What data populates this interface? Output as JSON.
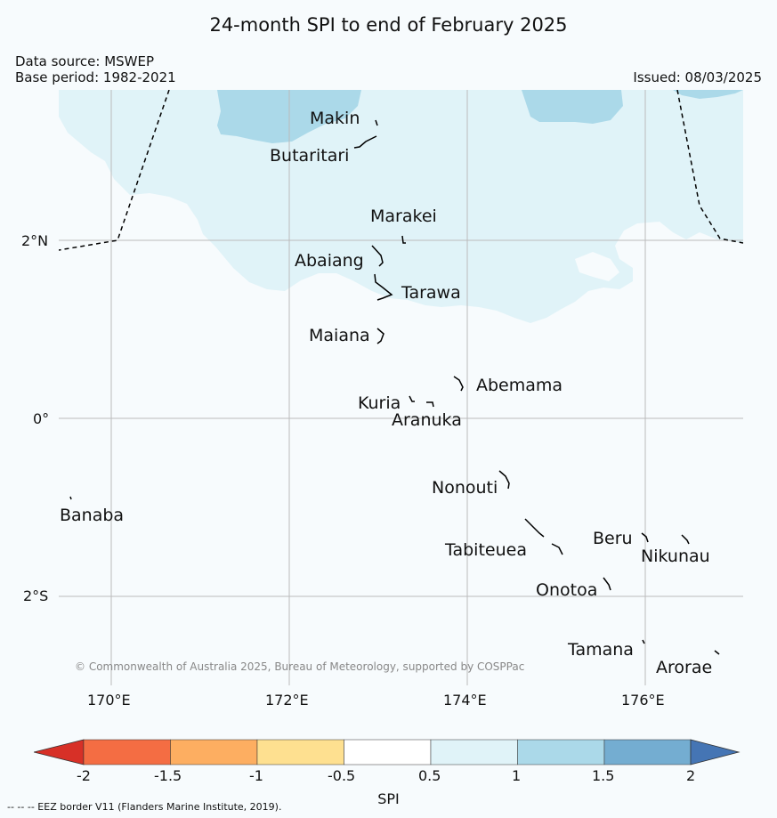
{
  "header": {
    "title": "24-month SPI to end of February 2025",
    "data_source": "Data source: MSWEP",
    "base_period": "Base period: 1982-2021",
    "issued": "Issued: 08/03/2025"
  },
  "map": {
    "lat_labels": [
      "2°N",
      "0°",
      "2°S"
    ],
    "lon_labels": [
      "170°E",
      "172°E",
      "174°E",
      "176°E"
    ],
    "islands": [
      {
        "name": "Makin"
      },
      {
        "name": "Butaritari"
      },
      {
        "name": "Marakei"
      },
      {
        "name": "Abaiang"
      },
      {
        "name": "Tarawa"
      },
      {
        "name": "Maiana"
      },
      {
        "name": "Abemama"
      },
      {
        "name": "Kuria"
      },
      {
        "name": "Aranuka"
      },
      {
        "name": "Nonouti"
      },
      {
        "name": "Banaba"
      },
      {
        "name": "Beru"
      },
      {
        "name": "Tabiteuea"
      },
      {
        "name": "Nikunau"
      },
      {
        "name": "Onotoa"
      },
      {
        "name": "Tamana"
      },
      {
        "name": "Arorae"
      }
    ],
    "copyright": "© Commonwealth of Australia 2025, Bureau of Meteorology, supported by COSPPac",
    "colors": {
      "spi_0_5_to_1": "#e0f3f8",
      "spi_1_to_1_5": "#abd9e9",
      "background": "#f7fbfd"
    }
  },
  "colorbar": {
    "label": "SPI",
    "ticks": [
      "-2",
      "-1.5",
      "-1",
      "-0.5",
      "0.5",
      "1",
      "1.5",
      "2"
    ],
    "colors": [
      "#d73027",
      "#f46d43",
      "#fdae61",
      "#fee090",
      "#ffffff",
      "#e0f3f8",
      "#abd9e9",
      "#74add1",
      "#4575b4"
    ]
  },
  "footer": {
    "eez_note": "-- -- -- EEZ border V11 (Flanders Marine Institute, 2019)."
  }
}
